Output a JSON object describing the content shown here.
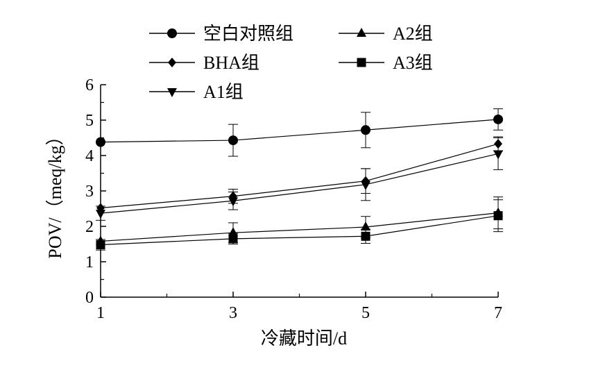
{
  "chart_data": {
    "type": "line",
    "title": "",
    "xlabel": "冷藏时间/d",
    "ylabel": "POV/（meq/kg）",
    "x": [
      1,
      3,
      5,
      7
    ],
    "x_ticks": [
      "1",
      "3",
      "5",
      "7"
    ],
    "xlim": [
      1,
      7
    ],
    "y_ticks": [
      "0",
      "1",
      "2",
      "3",
      "4",
      "5",
      "6"
    ],
    "ylim": [
      0,
      6
    ],
    "grid": false,
    "legend_position": "top-left",
    "series": [
      {
        "name": "空白对照组",
        "marker": "circle",
        "values": [
          4.38,
          4.43,
          4.72,
          5.02
        ],
        "errors": [
          0.0,
          0.45,
          0.5,
          0.3
        ]
      },
      {
        "name": "BHA组",
        "marker": "diamond",
        "values": [
          2.52,
          2.85,
          3.28,
          4.33
        ],
        "errors": [
          0.0,
          0.2,
          0.35,
          0.2
        ]
      },
      {
        "name": "A1组",
        "marker": "triangle-down",
        "values": [
          2.37,
          2.72,
          3.18,
          4.05
        ],
        "errors": [
          0.2,
          0.25,
          0.45,
          0.45
        ]
      },
      {
        "name": "A2组",
        "marker": "triangle-up",
        "values": [
          1.58,
          1.82,
          1.98,
          2.38
        ],
        "errors": [
          0.0,
          0.28,
          0.3,
          0.45
        ]
      },
      {
        "name": "A3组",
        "marker": "square",
        "values": [
          1.48,
          1.65,
          1.72,
          2.3
        ],
        "errors": [
          0.15,
          0.15,
          0.2,
          0.45
        ]
      }
    ],
    "colors": {
      "line": "#000000",
      "marker": "#000000"
    }
  }
}
